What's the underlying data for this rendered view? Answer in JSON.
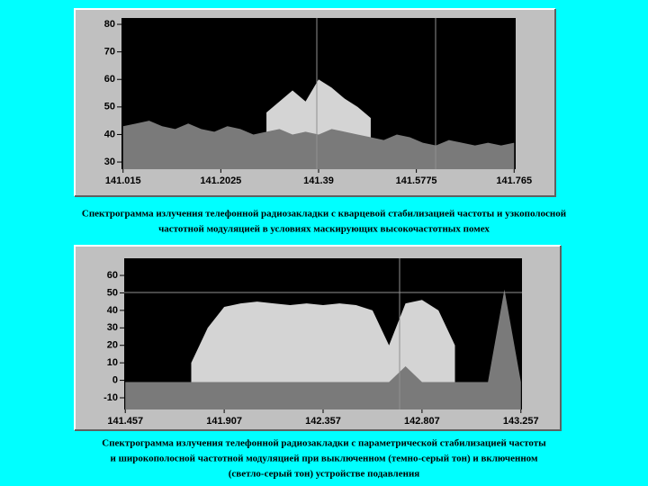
{
  "chart_data": [
    {
      "type": "area",
      "x": [
        141.015,
        141.04,
        141.065,
        141.09,
        141.115,
        141.14,
        141.165,
        141.19,
        141.215,
        141.24,
        141.265,
        141.29,
        141.315,
        141.34,
        141.365,
        141.39,
        141.415,
        141.44,
        141.465,
        141.49,
        141.515,
        141.54,
        141.565,
        141.59,
        141.615,
        141.64,
        141.665,
        141.69,
        141.715,
        141.74,
        141.765
      ],
      "series": [
        {
          "color": "#d4d4d4",
          "values": [
            null,
            null,
            null,
            null,
            null,
            null,
            null,
            null,
            null,
            null,
            null,
            48,
            52,
            56,
            52,
            60,
            57,
            53,
            50,
            46,
            null,
            null,
            null,
            null,
            null,
            null,
            null,
            null,
            null,
            null,
            null
          ]
        },
        {
          "color": "#7a7a7a",
          "values": [
            43,
            44,
            45,
            43,
            42,
            44,
            42,
            41,
            43,
            42,
            40,
            41,
            42,
            40,
            41,
            40,
            42,
            41,
            40,
            39,
            38,
            40,
            39,
            37,
            36,
            38,
            37,
            36,
            37,
            36,
            37
          ]
        }
      ],
      "xlim": [
        141.012,
        141.768
      ],
      "xticks": [
        141.015,
        141.2025,
        141.39,
        141.5775,
        141.765
      ],
      "ylim": [
        27.4,
        82.3
      ],
      "yticks": [
        80,
        70,
        60,
        50,
        40,
        30
      ],
      "caption": [
        "Спектрограмма излучения телефонной радиозакладки с кварцевой стабилизацией частоты и узкополосной",
        "частотной модуляцией в условиях маскирующих высокочастотных помех"
      ]
    },
    {
      "type": "area",
      "x": [
        141.457,
        141.532,
        141.607,
        141.682,
        141.757,
        141.832,
        141.907,
        141.982,
        142.057,
        142.132,
        142.207,
        142.282,
        142.357,
        142.432,
        142.507,
        142.582,
        142.657,
        142.732,
        142.807,
        142.882,
        142.957,
        143.032,
        143.107,
        143.182,
        143.257
      ],
      "series": [
        {
          "color": "#d4d4d4",
          "values": [
            null,
            null,
            null,
            null,
            10,
            30,
            42,
            44,
            45,
            44,
            43,
            44,
            43,
            44,
            43,
            40,
            20,
            44,
            46,
            40,
            20,
            null,
            null,
            null,
            null
          ]
        },
        {
          "color": "#7a7a7a",
          "values": [
            -1,
            -1,
            -1,
            -1,
            -1,
            -1,
            -1,
            -1,
            -1,
            -1,
            -1,
            -1,
            -1,
            -1,
            -1,
            -1,
            -1,
            8,
            -1,
            -1,
            -1,
            -1,
            -1,
            52,
            -1
          ]
        }
      ],
      "xlim": [
        141.452,
        143.262
      ],
      "xticks": [
        141.457,
        141.907,
        142.357,
        142.807,
        143.257
      ],
      "ylim": [
        -16.7,
        69.8
      ],
      "yticks": [
        60,
        50,
        40,
        30,
        20,
        10,
        0,
        -10
      ],
      "caption": [
        "Спектрограмма  излучения телефонной  радиозакладки  с параметрической стабилизацией частоты",
        "и широкополосной частотной модуляцией при выключенном (темно-серый тон)  и включенном",
        "(светло-серый тон) устройстве подавления"
      ]
    }
  ]
}
